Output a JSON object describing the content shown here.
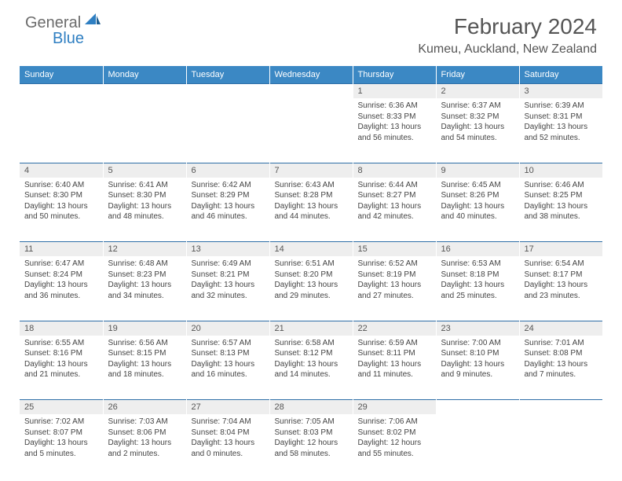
{
  "logo": {
    "part1": "General",
    "part2": "Blue"
  },
  "header": {
    "title": "February 2024",
    "location": "Kumeu, Auckland, New Zealand"
  },
  "colors": {
    "header_bg": "#3b88c4",
    "header_text": "#ffffff",
    "daynum_bg": "#eeeeee",
    "row_border": "#2f6fa8",
    "logo_gray": "#6b6b6b",
    "logo_blue": "#2f7fc2",
    "text": "#444444"
  },
  "dayHeaders": [
    "Sunday",
    "Monday",
    "Tuesday",
    "Wednesday",
    "Thursday",
    "Friday",
    "Saturday"
  ],
  "weeks": [
    [
      null,
      null,
      null,
      null,
      {
        "d": "1",
        "sr": "Sunrise: 6:36 AM",
        "ss": "Sunset: 8:33 PM",
        "dl1": "Daylight: 13 hours",
        "dl2": "and 56 minutes."
      },
      {
        "d": "2",
        "sr": "Sunrise: 6:37 AM",
        "ss": "Sunset: 8:32 PM",
        "dl1": "Daylight: 13 hours",
        "dl2": "and 54 minutes."
      },
      {
        "d": "3",
        "sr": "Sunrise: 6:39 AM",
        "ss": "Sunset: 8:31 PM",
        "dl1": "Daylight: 13 hours",
        "dl2": "and 52 minutes."
      }
    ],
    [
      {
        "d": "4",
        "sr": "Sunrise: 6:40 AM",
        "ss": "Sunset: 8:30 PM",
        "dl1": "Daylight: 13 hours",
        "dl2": "and 50 minutes."
      },
      {
        "d": "5",
        "sr": "Sunrise: 6:41 AM",
        "ss": "Sunset: 8:30 PM",
        "dl1": "Daylight: 13 hours",
        "dl2": "and 48 minutes."
      },
      {
        "d": "6",
        "sr": "Sunrise: 6:42 AM",
        "ss": "Sunset: 8:29 PM",
        "dl1": "Daylight: 13 hours",
        "dl2": "and 46 minutes."
      },
      {
        "d": "7",
        "sr": "Sunrise: 6:43 AM",
        "ss": "Sunset: 8:28 PM",
        "dl1": "Daylight: 13 hours",
        "dl2": "and 44 minutes."
      },
      {
        "d": "8",
        "sr": "Sunrise: 6:44 AM",
        "ss": "Sunset: 8:27 PM",
        "dl1": "Daylight: 13 hours",
        "dl2": "and 42 minutes."
      },
      {
        "d": "9",
        "sr": "Sunrise: 6:45 AM",
        "ss": "Sunset: 8:26 PM",
        "dl1": "Daylight: 13 hours",
        "dl2": "and 40 minutes."
      },
      {
        "d": "10",
        "sr": "Sunrise: 6:46 AM",
        "ss": "Sunset: 8:25 PM",
        "dl1": "Daylight: 13 hours",
        "dl2": "and 38 minutes."
      }
    ],
    [
      {
        "d": "11",
        "sr": "Sunrise: 6:47 AM",
        "ss": "Sunset: 8:24 PM",
        "dl1": "Daylight: 13 hours",
        "dl2": "and 36 minutes."
      },
      {
        "d": "12",
        "sr": "Sunrise: 6:48 AM",
        "ss": "Sunset: 8:23 PM",
        "dl1": "Daylight: 13 hours",
        "dl2": "and 34 minutes."
      },
      {
        "d": "13",
        "sr": "Sunrise: 6:49 AM",
        "ss": "Sunset: 8:21 PM",
        "dl1": "Daylight: 13 hours",
        "dl2": "and 32 minutes."
      },
      {
        "d": "14",
        "sr": "Sunrise: 6:51 AM",
        "ss": "Sunset: 8:20 PM",
        "dl1": "Daylight: 13 hours",
        "dl2": "and 29 minutes."
      },
      {
        "d": "15",
        "sr": "Sunrise: 6:52 AM",
        "ss": "Sunset: 8:19 PM",
        "dl1": "Daylight: 13 hours",
        "dl2": "and 27 minutes."
      },
      {
        "d": "16",
        "sr": "Sunrise: 6:53 AM",
        "ss": "Sunset: 8:18 PM",
        "dl1": "Daylight: 13 hours",
        "dl2": "and 25 minutes."
      },
      {
        "d": "17",
        "sr": "Sunrise: 6:54 AM",
        "ss": "Sunset: 8:17 PM",
        "dl1": "Daylight: 13 hours",
        "dl2": "and 23 minutes."
      }
    ],
    [
      {
        "d": "18",
        "sr": "Sunrise: 6:55 AM",
        "ss": "Sunset: 8:16 PM",
        "dl1": "Daylight: 13 hours",
        "dl2": "and 21 minutes."
      },
      {
        "d": "19",
        "sr": "Sunrise: 6:56 AM",
        "ss": "Sunset: 8:15 PM",
        "dl1": "Daylight: 13 hours",
        "dl2": "and 18 minutes."
      },
      {
        "d": "20",
        "sr": "Sunrise: 6:57 AM",
        "ss": "Sunset: 8:13 PM",
        "dl1": "Daylight: 13 hours",
        "dl2": "and 16 minutes."
      },
      {
        "d": "21",
        "sr": "Sunrise: 6:58 AM",
        "ss": "Sunset: 8:12 PM",
        "dl1": "Daylight: 13 hours",
        "dl2": "and 14 minutes."
      },
      {
        "d": "22",
        "sr": "Sunrise: 6:59 AM",
        "ss": "Sunset: 8:11 PM",
        "dl1": "Daylight: 13 hours",
        "dl2": "and 11 minutes."
      },
      {
        "d": "23",
        "sr": "Sunrise: 7:00 AM",
        "ss": "Sunset: 8:10 PM",
        "dl1": "Daylight: 13 hours",
        "dl2": "and 9 minutes."
      },
      {
        "d": "24",
        "sr": "Sunrise: 7:01 AM",
        "ss": "Sunset: 8:08 PM",
        "dl1": "Daylight: 13 hours",
        "dl2": "and 7 minutes."
      }
    ],
    [
      {
        "d": "25",
        "sr": "Sunrise: 7:02 AM",
        "ss": "Sunset: 8:07 PM",
        "dl1": "Daylight: 13 hours",
        "dl2": "and 5 minutes."
      },
      {
        "d": "26",
        "sr": "Sunrise: 7:03 AM",
        "ss": "Sunset: 8:06 PM",
        "dl1": "Daylight: 13 hours",
        "dl2": "and 2 minutes."
      },
      {
        "d": "27",
        "sr": "Sunrise: 7:04 AM",
        "ss": "Sunset: 8:04 PM",
        "dl1": "Daylight: 13 hours",
        "dl2": "and 0 minutes."
      },
      {
        "d": "28",
        "sr": "Sunrise: 7:05 AM",
        "ss": "Sunset: 8:03 PM",
        "dl1": "Daylight: 12 hours",
        "dl2": "and 58 minutes."
      },
      {
        "d": "29",
        "sr": "Sunrise: 7:06 AM",
        "ss": "Sunset: 8:02 PM",
        "dl1": "Daylight: 12 hours",
        "dl2": "and 55 minutes."
      },
      null,
      null
    ]
  ]
}
